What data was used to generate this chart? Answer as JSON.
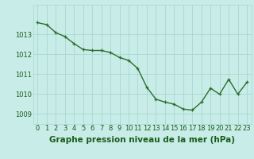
{
  "x": [
    0,
    1,
    2,
    3,
    4,
    5,
    6,
    7,
    8,
    9,
    10,
    11,
    12,
    13,
    14,
    15,
    16,
    17,
    18,
    19,
    20,
    21,
    22,
    23
  ],
  "y": [
    1013.6,
    1013.5,
    1013.1,
    1012.9,
    1012.55,
    1012.25,
    1012.2,
    1012.2,
    1012.1,
    1011.85,
    1011.7,
    1011.3,
    1010.35,
    1009.75,
    1009.6,
    1009.5,
    1009.25,
    1009.2,
    1009.6,
    1010.3,
    1010.0,
    1010.75,
    1010.0,
    1010.6
  ],
  "line_color": "#2d6e2d",
  "marker_color": "#2d6e2d",
  "bg_color": "#c8ece8",
  "grid_color": "#a8d8d0",
  "title": "Graphe pression niveau de la mer (hPa)",
  "ylim_min": 1008.5,
  "ylim_max": 1014.5,
  "yticks": [
    1009,
    1010,
    1011,
    1012,
    1013
  ],
  "xticks": [
    0,
    1,
    2,
    3,
    4,
    5,
    6,
    7,
    8,
    9,
    10,
    11,
    12,
    13,
    14,
    15,
    16,
    17,
    18,
    19,
    20,
    21,
    22,
    23
  ],
  "title_color": "#1a5c1a",
  "title_fontsize": 7.5,
  "tick_fontsize": 6.0,
  "marker_size": 3,
  "line_width": 1.0
}
